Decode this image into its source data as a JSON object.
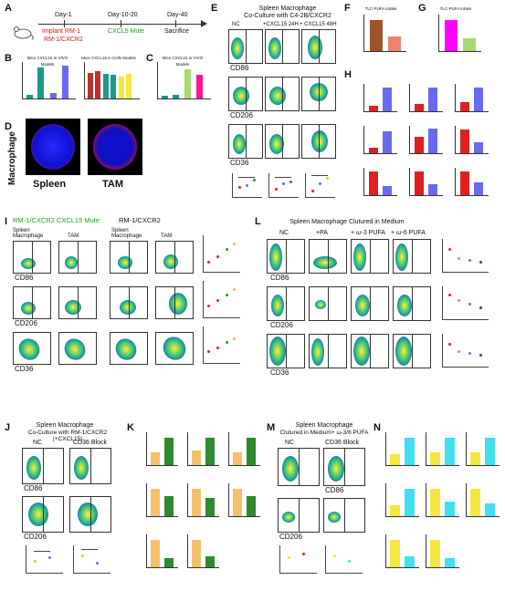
{
  "panels": {
    "A": {
      "label": "A",
      "day1": "Day-1",
      "day10": "Day-10-20",
      "day40": "Day-40",
      "implant": "Implant RM-1",
      "implant2": "RM-1/CXCR2",
      "mute": "CXCL5 Mute",
      "sacrifice": "Sacrifice"
    },
    "B": {
      "label": "B",
      "t1": "Mice CXCL15 in VIVO Models",
      "t2": "Mice CXCL15 in Cells Models"
    },
    "C": {
      "label": "C",
      "t1": "Mice CXCL15 in VIVO Models"
    },
    "D": {
      "label": "D",
      "ylab": "Macrophage",
      "s1": "Spleen",
      "s2": "TAM"
    },
    "E": {
      "label": "E",
      "title1": "Spleen Macrophage",
      "title2": "Co-Culture with C4-2B/CXCR2",
      "cols": [
        "NC",
        "+CXCL15 24H",
        "+ CXCL15 48H"
      ],
      "rows": [
        "CD86",
        "CD206",
        "CD36"
      ]
    },
    "F": {
      "label": "F",
      "t": "TLC-PUFA intake"
    },
    "G": {
      "label": "G",
      "t": "TLC-PUFA intake"
    },
    "H": {
      "label": "H"
    },
    "I": {
      "label": "I",
      "h1": "RM-1/CXCR2 CXCL15 Mute",
      "h2": "RM-1/CXCR2",
      "cols": [
        "Spleen Macrophage",
        "TAM",
        "Spleen Macrophage",
        "TAM"
      ],
      "rows": [
        "CD86",
        "CD206",
        "CD36"
      ]
    },
    "J": {
      "label": "J",
      "title1": "Spleen Macrophage",
      "title2": "Co-Culture with RM-1/CXCR2 (+CXCL15)",
      "cols": [
        "NC",
        "CD36 Block"
      ],
      "rows": [
        "CD86",
        "CD206"
      ]
    },
    "K": {
      "label": "K"
    },
    "L": {
      "label": "L",
      "title": "Spleen Macrophage Clutured in Medium",
      "cols": [
        "NC",
        "+PA",
        "+ ω-3 PUFA",
        "+ ω-6 PUFA"
      ],
      "rows": [
        "CD86",
        "CD206",
        "CD36"
      ]
    },
    "M": {
      "label": "M",
      "title1": "Spleen Macrophage",
      "title2": "Clutured in Medium+ ω-3/6 PUFA",
      "cols": [
        "NC",
        "CD36 Block"
      ],
      "rows": [
        "CD86",
        "CD206"
      ]
    },
    "N": {
      "label": "N"
    }
  },
  "colors": {
    "brown": "#a0522d",
    "salmon": "#f08070",
    "magenta": "#ff00ff",
    "lime": "#a6d96a",
    "red": "#e02020",
    "blue": "#6a6af0",
    "orange": "#f5b942",
    "green": "#2e8b2e",
    "yellow": "#f5e642",
    "cyan": "#40e0f0",
    "teal": "#1a9a8a"
  }
}
